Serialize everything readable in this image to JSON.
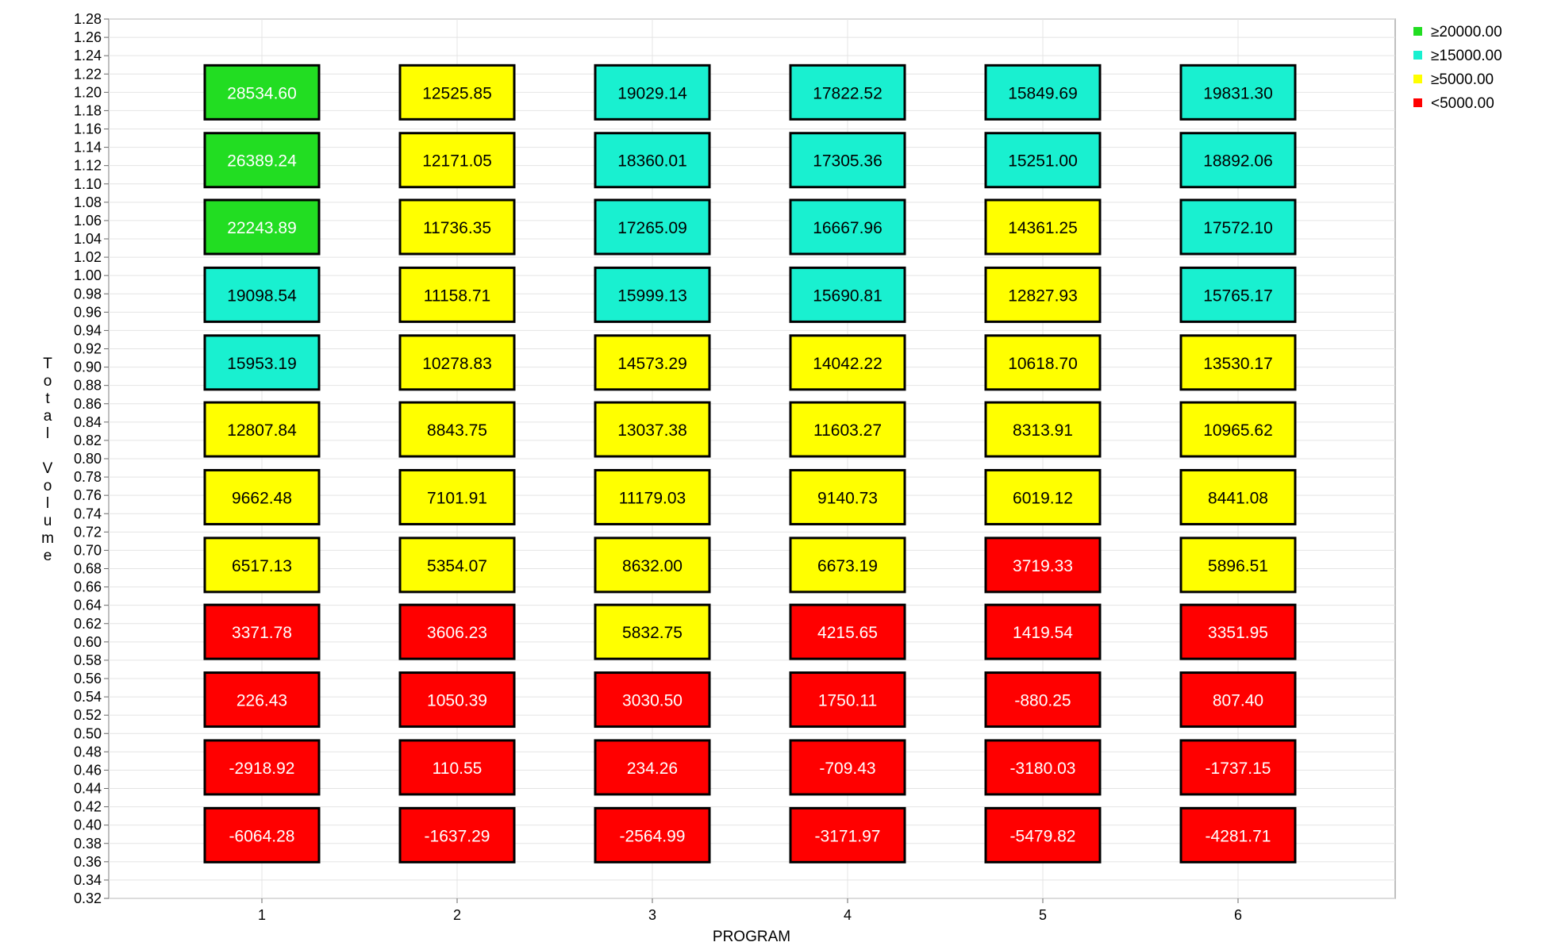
{
  "chart_data": {
    "type": "heatmap",
    "title": "",
    "xlabel": "PROGRAM",
    "ylabel": "Total Volume",
    "x_categories": [
      "1",
      "2",
      "3",
      "4",
      "5",
      "6"
    ],
    "y_values": [
      1.2,
      1.126,
      1.053,
      0.979,
      0.905,
      0.832,
      0.758,
      0.684,
      0.611,
      0.537,
      0.463,
      0.389
    ],
    "ylim": [
      0.32,
      1.28
    ],
    "y_tick_step": 0.02,
    "grid": true,
    "legend_position": "top-right",
    "legend": [
      {
        "label": "≥20000.00",
        "color": "#22dd22",
        "min": 20000
      },
      {
        "label": "≥15000.00",
        "color": "#19f0d0",
        "min": 15000
      },
      {
        "label": "≥5000.00",
        "color": "#ffff00",
        "min": 5000
      },
      {
        "label": "<5000.00",
        "color": "#ff0000",
        "min": null
      }
    ],
    "values": [
      [
        "28534.60",
        "12525.85",
        "19029.14",
        "17822.52",
        "15849.69",
        "19831.30"
      ],
      [
        "26389.24",
        "12171.05",
        "18360.01",
        "17305.36",
        "15251.00",
        "18892.06"
      ],
      [
        "22243.89",
        "11736.35",
        "17265.09",
        "16667.96",
        "14361.25",
        "17572.10"
      ],
      [
        "19098.54",
        "11158.71",
        "15999.13",
        "15690.81",
        "12827.93",
        "15765.17"
      ],
      [
        "15953.19",
        "10278.83",
        "14573.29",
        "14042.22",
        "10618.70",
        "13530.17"
      ],
      [
        "12807.84",
        "8843.75",
        "13037.38",
        "11603.27",
        "8313.91",
        "10965.62"
      ],
      [
        "9662.48",
        "7101.91",
        "11179.03",
        "9140.73",
        "6019.12",
        "8441.08"
      ],
      [
        "6517.13",
        "5354.07",
        "8632.00",
        "6673.19",
        "3719.33",
        "5896.51"
      ],
      [
        "3371.78",
        "3606.23",
        "5832.75",
        "4215.65",
        "1419.54",
        "3351.95"
      ],
      [
        "226.43",
        "1050.39",
        "3030.50",
        "1750.11",
        "-880.25",
        "807.40"
      ],
      [
        "-2918.92",
        "110.55",
        "234.26",
        "-709.43",
        "-3180.03",
        "-1737.15"
      ],
      [
        "-6064.28",
        "-1637.29",
        "-2564.99",
        "-3171.97",
        "-5479.82",
        "-4281.71"
      ]
    ]
  }
}
